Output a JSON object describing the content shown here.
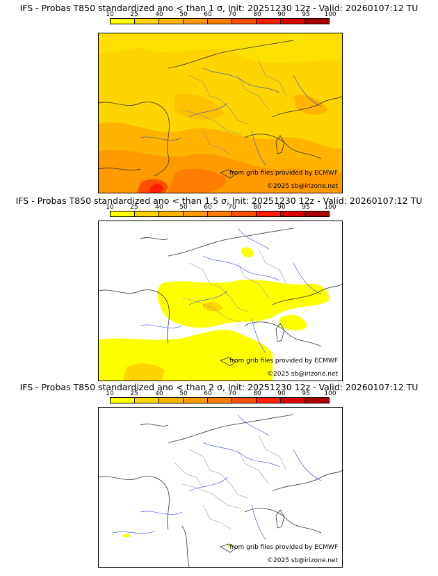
{
  "legend_labels": [
    "10",
    "25",
    "40",
    "50",
    "60",
    "70",
    "80",
    "90",
    "95",
    "100"
  ],
  "legend_colors": [
    "#ffff00",
    "#ffd400",
    "#ffb400",
    "#ff9a00",
    "#ff7d00",
    "#ff4f00",
    "#ff1e00",
    "#dc0000",
    "#a80000",
    "#6e0000"
  ],
  "credits": {
    "source": "from grib files provided by ECMWF",
    "copyright": "©2025 sb@irizone.net"
  },
  "panels": [
    {
      "title": "IFS - Probas T850  standardized ano < than 1 σ, Init: 20251230 12z - Valid: 20260107:12 TU",
      "threshold": "1 σ"
    },
    {
      "title": "IFS - Probas T850  standardized ano < than 1.5 σ, Init: 20251230 12z - Valid: 20260107:12 TU",
      "threshold": "1.5 σ"
    },
    {
      "title": "IFS - Probas T850  standardized ano < than 2 σ, Init: 20251230 12z - Valid: 20260107:12 TU",
      "threshold": "2 σ"
    }
  ]
}
